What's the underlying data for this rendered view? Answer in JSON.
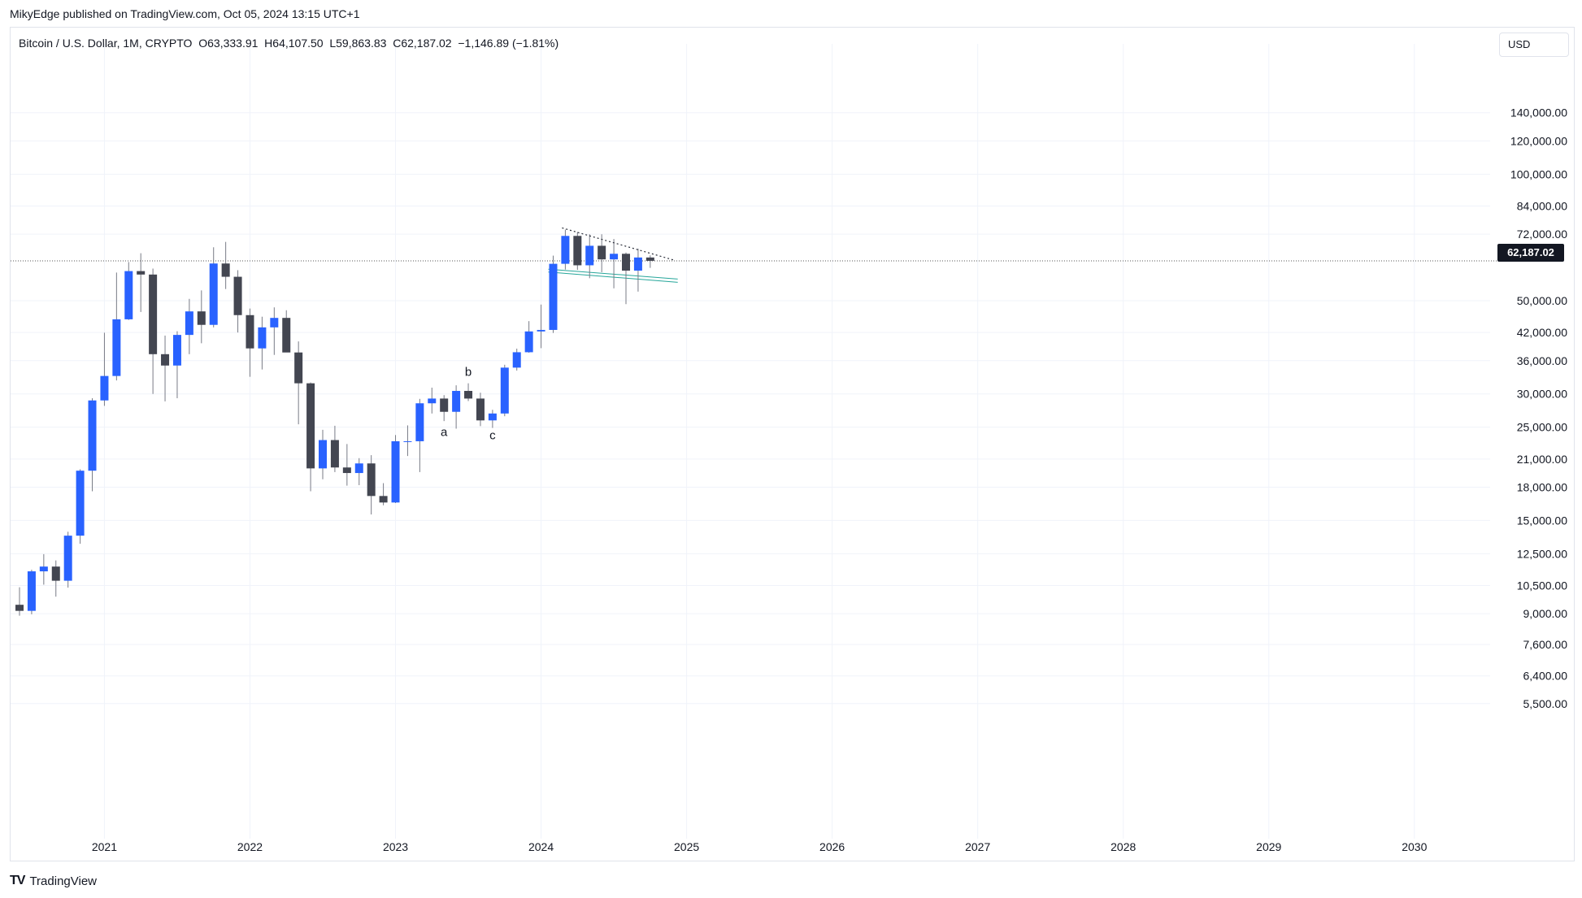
{
  "publisher": "MikyEdge published on TradingView.com, Oct 05, 2024 13:15 UTC+1",
  "legend": {
    "symbol": "Bitcoin / U.S. Dollar, 1M, CRYPTO",
    "ohlc": "O63,333.91  H64,107.50  L59,863.83  C62,187.02  −1,146.89 (−1.81%)"
  },
  "currency": "USD",
  "last_price_label": "62,187.02",
  "brand": "TradingView",
  "colors": {
    "up": "#2962ff",
    "down": "#434651",
    "wick": "#787b86",
    "grid": "#f0f3fa",
    "trendline": "#2a2e39",
    "support": "#26a69a"
  },
  "chart_data": {
    "type": "candlestick",
    "yscale": "log",
    "ylim": [
      4500,
      160000
    ],
    "xlim": [
      "2020-06",
      "2030-12"
    ],
    "y_ticks": [
      5500,
      6400,
      7600,
      9000,
      10500,
      12500,
      15000,
      18000,
      21000,
      25000,
      30000,
      36000,
      42000,
      50000,
      72000,
      84000,
      100000,
      120000,
      140000
    ],
    "y_tick_labels": [
      "5,500.00",
      "6,400.00",
      "7,600.00",
      "9,000.00",
      "10,500.00",
      "12,500.00",
      "15,000.00",
      "18,000.00",
      "21,000.00",
      "25,000.00",
      "30,000.00",
      "36,000.00",
      "42,000.00",
      "50,000.00",
      "72,000.00",
      "84,000.00",
      "100,000.00",
      "120,000.00",
      "140,000.00"
    ],
    "x_ticks": [
      "2021-01",
      "2022-01",
      "2023-01",
      "2024-01",
      "2025-01",
      "2026-01",
      "2027-01",
      "2028-01",
      "2029-01",
      "2030-01"
    ],
    "x_tick_labels": [
      "2021",
      "2022",
      "2023",
      "2024",
      "2025",
      "2026",
      "2027",
      "2028",
      "2029",
      "2030"
    ],
    "last_price": 62187.02,
    "candles": [
      {
        "t": "2020-06",
        "o": 9450,
        "h": 10400,
        "l": 8900,
        "c": 9140
      },
      {
        "t": "2020-07",
        "o": 9140,
        "h": 11450,
        "l": 8970,
        "c": 11350
      },
      {
        "t": "2020-08",
        "o": 11350,
        "h": 12470,
        "l": 10550,
        "c": 11650
      },
      {
        "t": "2020-09",
        "o": 11650,
        "h": 12050,
        "l": 9880,
        "c": 10780
      },
      {
        "t": "2020-10",
        "o": 10780,
        "h": 14100,
        "l": 10380,
        "c": 13800
      },
      {
        "t": "2020-11",
        "o": 13800,
        "h": 19850,
        "l": 13200,
        "c": 19700
      },
      {
        "t": "2020-12",
        "o": 19700,
        "h": 29300,
        "l": 17600,
        "c": 28950
      },
      {
        "t": "2021-01",
        "o": 28950,
        "h": 41950,
        "l": 28100,
        "c": 33100
      },
      {
        "t": "2021-02",
        "o": 33100,
        "h": 58350,
        "l": 32300,
        "c": 45150
      },
      {
        "t": "2021-03",
        "o": 45150,
        "h": 61800,
        "l": 45000,
        "c": 58800
      },
      {
        "t": "2021-04",
        "o": 58800,
        "h": 64850,
        "l": 47000,
        "c": 57700
      },
      {
        "t": "2021-05",
        "o": 57700,
        "h": 59600,
        "l": 30000,
        "c": 37300
      },
      {
        "t": "2021-06",
        "o": 37300,
        "h": 41300,
        "l": 28800,
        "c": 35050
      },
      {
        "t": "2021-07",
        "o": 35050,
        "h": 42300,
        "l": 29300,
        "c": 41450
      },
      {
        "t": "2021-08",
        "o": 41450,
        "h": 50500,
        "l": 37300,
        "c": 47150
      },
      {
        "t": "2021-09",
        "o": 47150,
        "h": 52900,
        "l": 39600,
        "c": 43800
      },
      {
        "t": "2021-10",
        "o": 43800,
        "h": 67000,
        "l": 43200,
        "c": 61300
      },
      {
        "t": "2021-11",
        "o": 61300,
        "h": 69000,
        "l": 53300,
        "c": 57000
      },
      {
        "t": "2021-12",
        "o": 57000,
        "h": 59100,
        "l": 42000,
        "c": 46200
      },
      {
        "t": "2022-01",
        "o": 46200,
        "h": 47900,
        "l": 32950,
        "c": 38500
      },
      {
        "t": "2022-02",
        "o": 38500,
        "h": 45800,
        "l": 34300,
        "c": 43200
      },
      {
        "t": "2022-03",
        "o": 43200,
        "h": 48200,
        "l": 37150,
        "c": 45500
      },
      {
        "t": "2022-04",
        "o": 45500,
        "h": 47450,
        "l": 37700,
        "c": 37650
      },
      {
        "t": "2022-05",
        "o": 37650,
        "h": 40000,
        "l": 25400,
        "c": 31800
      },
      {
        "t": "2022-06",
        "o": 31800,
        "h": 31950,
        "l": 17600,
        "c": 19950
      },
      {
        "t": "2022-07",
        "o": 19950,
        "h": 24650,
        "l": 18800,
        "c": 23300
      },
      {
        "t": "2022-08",
        "o": 23300,
        "h": 25200,
        "l": 19550,
        "c": 20050
      },
      {
        "t": "2022-09",
        "o": 20050,
        "h": 22800,
        "l": 18150,
        "c": 19450
      },
      {
        "t": "2022-10",
        "o": 19450,
        "h": 21100,
        "l": 18200,
        "c": 20500
      },
      {
        "t": "2022-11",
        "o": 20500,
        "h": 21450,
        "l": 15500,
        "c": 17150
      },
      {
        "t": "2022-12",
        "o": 17150,
        "h": 18400,
        "l": 16300,
        "c": 16550
      },
      {
        "t": "2023-01",
        "o": 16550,
        "h": 23950,
        "l": 16500,
        "c": 23150
      },
      {
        "t": "2023-02",
        "o": 23150,
        "h": 25250,
        "l": 21350,
        "c": 23150
      },
      {
        "t": "2023-03",
        "o": 23150,
        "h": 29200,
        "l": 19550,
        "c": 28500
      },
      {
        "t": "2023-04",
        "o": 28500,
        "h": 31050,
        "l": 26950,
        "c": 29250
      },
      {
        "t": "2023-05",
        "o": 29250,
        "h": 29800,
        "l": 25850,
        "c": 27200
      },
      {
        "t": "2023-06",
        "o": 27200,
        "h": 31450,
        "l": 24800,
        "c": 30500
      },
      {
        "t": "2023-07",
        "o": 30500,
        "h": 31800,
        "l": 28850,
        "c": 29250
      },
      {
        "t": "2023-08",
        "o": 29250,
        "h": 30200,
        "l": 25150,
        "c": 25950
      },
      {
        "t": "2023-09",
        "o": 25950,
        "h": 27500,
        "l": 24900,
        "c": 26950
      },
      {
        "t": "2023-10",
        "o": 26950,
        "h": 35200,
        "l": 26550,
        "c": 34650
      },
      {
        "t": "2023-11",
        "o": 34650,
        "h": 38450,
        "l": 34100,
        "c": 37700
      },
      {
        "t": "2023-12",
        "o": 37700,
        "h": 44700,
        "l": 37600,
        "c": 42250
      },
      {
        "t": "2024-01",
        "o": 42250,
        "h": 48950,
        "l": 38550,
        "c": 42600
      },
      {
        "t": "2024-02",
        "o": 42600,
        "h": 64000,
        "l": 41900,
        "c": 61200
      },
      {
        "t": "2024-03",
        "o": 61200,
        "h": 73800,
        "l": 59300,
        "c": 71300
      },
      {
        "t": "2024-04",
        "o": 71300,
        "h": 72800,
        "l": 59200,
        "c": 60700
      },
      {
        "t": "2024-05",
        "o": 60700,
        "h": 71950,
        "l": 56550,
        "c": 67550
      },
      {
        "t": "2024-06",
        "o": 67550,
        "h": 71950,
        "l": 58450,
        "c": 62700
      },
      {
        "t": "2024-07",
        "o": 62700,
        "h": 70100,
        "l": 53500,
        "c": 64650
      },
      {
        "t": "2024-08",
        "o": 64650,
        "h": 65100,
        "l": 49050,
        "c": 58950
      },
      {
        "t": "2024-09",
        "o": 58950,
        "h": 66500,
        "l": 52550,
        "c": 63350
      },
      {
        "t": "2024-10",
        "o": 63350,
        "h": 64100,
        "l": 59850,
        "c": 62200
      }
    ],
    "annotations": [
      {
        "text": "a",
        "t": "2023-05",
        "y": 23800
      },
      {
        "text": "b",
        "t": "2023-07",
        "y": 33100
      },
      {
        "text": "c",
        "t": "2023-09",
        "y": 23400
      }
    ],
    "trendline": {
      "points": [
        {
          "t": "2024-03",
          "y": 74500
        },
        {
          "t": "2024-12",
          "y": 62400
        }
      ]
    },
    "support_lines": [
      {
        "points": [
          {
            "t": "2024-02",
            "y": 59400
          },
          {
            "t": "2024-12",
            "y": 56300
          }
        ]
      },
      {
        "points": [
          {
            "t": "2024-02",
            "y": 58500
          },
          {
            "t": "2024-12",
            "y": 55300
          }
        ]
      }
    ]
  }
}
